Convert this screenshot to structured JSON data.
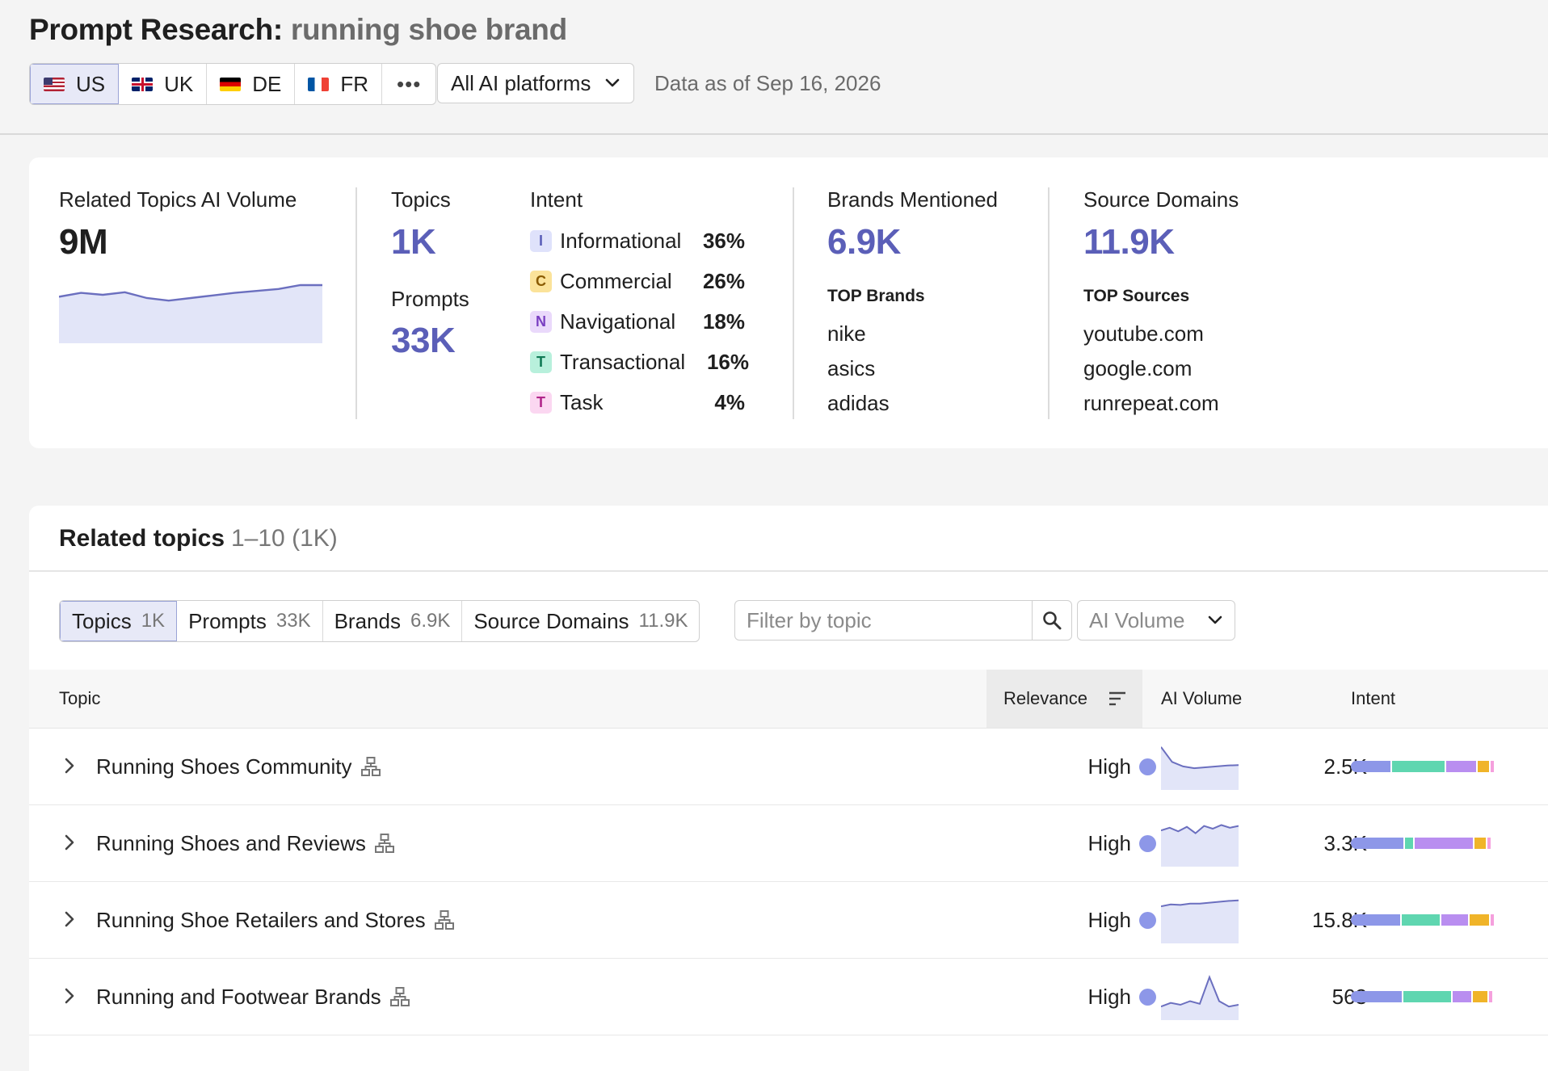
{
  "header": {
    "title_label": "Prompt Research:",
    "query": "running shoe brand",
    "geos": [
      {
        "code": "US",
        "flag": "us-flag-icon",
        "active": true
      },
      {
        "code": "UK",
        "flag": "uk-flag-icon",
        "active": false
      },
      {
        "code": "DE",
        "flag": "de-flag-icon",
        "active": false
      },
      {
        "code": "FR",
        "flag": "fr-flag-icon",
        "active": false
      }
    ],
    "more_label": "•••",
    "platform_select": "All AI platforms",
    "data_date": "Data as of Sep 16, 2026"
  },
  "summary": {
    "volume_label": "Related Topics AI Volume",
    "volume_value": "9M",
    "volume_trend": [
      72,
      78,
      75,
      79,
      70,
      66,
      70,
      74,
      78,
      81,
      84,
      90,
      90
    ],
    "topics_label": "Topics",
    "topics_value": "1K",
    "prompts_label": "Prompts",
    "prompts_value": "33K",
    "intent_label": "Intent",
    "intents": [
      {
        "letter": "I",
        "name": "Informational",
        "pct": "36%",
        "fraction": 0.36,
        "color": "#8d97e8",
        "badge_bg": "#dfe2fb",
        "badge_fg": "#5b5fb8"
      },
      {
        "letter": "C",
        "name": "Commercial",
        "pct": "26%",
        "fraction": 0.26,
        "color": "#5fd6b0",
        "badge_bg": "#fbe39a",
        "badge_fg": "#8a5b00"
      },
      {
        "letter": "N",
        "name": "Navigational",
        "pct": "18%",
        "fraction": 0.18,
        "color": "#b98ef0",
        "badge_bg": "#ead9fb",
        "badge_fg": "#7a3fc2"
      },
      {
        "letter": "T",
        "name": "Transactional",
        "pct": "16%",
        "fraction": 0.16,
        "color": "#f0b429",
        "badge_bg": "#b8f0dc",
        "badge_fg": "#107a55"
      },
      {
        "letter": "T",
        "name": "Task",
        "pct": "4%",
        "fraction": 0.04,
        "color": "#f5a0dd",
        "badge_bg": "#fbd7f1",
        "badge_fg": "#b0268a"
      }
    ],
    "brands_label": "Brands Mentioned",
    "brands_value": "6.9K",
    "top_brands_label": "TOP Brands",
    "top_brands": [
      "nike",
      "asics",
      "adidas"
    ],
    "sources_label": "Source Domains",
    "sources_value": "11.9K",
    "top_sources_label": "TOP Sources",
    "top_sources": [
      "youtube.com",
      "google.com",
      "runrepeat.com"
    ]
  },
  "topics": {
    "title": "Related topics",
    "range": "1–10 (1K)",
    "tabs": [
      {
        "label": "Topics",
        "count": "1K",
        "active": true
      },
      {
        "label": "Prompts",
        "count": "33K",
        "active": false
      },
      {
        "label": "Brands",
        "count": "6.9K",
        "active": false
      },
      {
        "label": "Source Domains",
        "count": "11.9K",
        "active": false
      }
    ],
    "filter_placeholder": "Filter by topic",
    "sort_select": "AI Volume",
    "columns": {
      "topic": "Topic",
      "relevance": "Relevance",
      "volume": "AI Volume",
      "intent": "Intent"
    },
    "rows": [
      {
        "name": "Running Shoes Community",
        "relevance": "High",
        "volume": "2.5K",
        "trend": [
          95,
          62,
          52,
          48,
          50,
          52,
          54,
          55
        ],
        "intent_mix": [
          0.24,
          0.32,
          0.18,
          0.07,
          0.02
        ]
      },
      {
        "name": "Running Shoes and Reviews",
        "relevance": "High",
        "volume": "3.3K",
        "trend": [
          80,
          86,
          78,
          88,
          74,
          90,
          84,
          92,
          86,
          90
        ],
        "intent_mix": [
          0.32,
          0.05,
          0.35,
          0.07,
          0.02
        ]
      },
      {
        "name": "Running Shoe Retailers and Stores",
        "relevance": "High",
        "volume": "15.8K",
        "trend": [
          82,
          86,
          85,
          88,
          88,
          90,
          92,
          94,
          95
        ],
        "intent_mix": [
          0.3,
          0.23,
          0.16,
          0.12,
          0.02
        ]
      },
      {
        "name": "Running and Footwear Brands",
        "relevance": "High",
        "volume": "563",
        "trend": [
          30,
          38,
          34,
          42,
          36,
          95,
          42,
          30,
          34
        ],
        "intent_mix": [
          0.31,
          0.29,
          0.11,
          0.09,
          0.02
        ]
      }
    ]
  }
}
